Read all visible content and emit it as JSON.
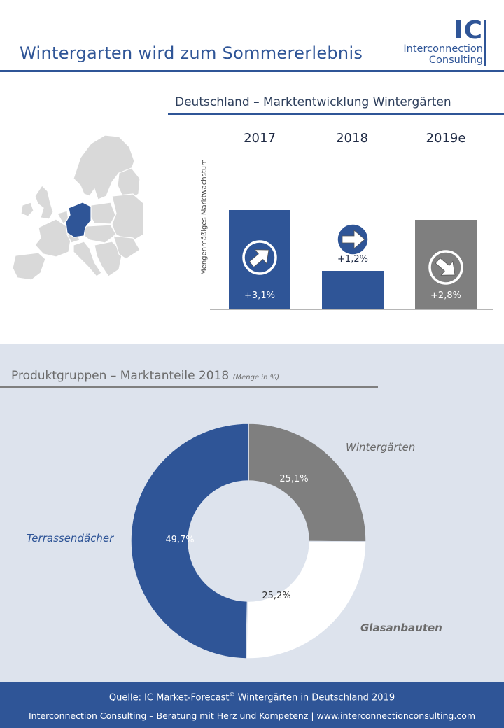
{
  "header": {
    "title": "Wintergarten wird zum Sommererlebnis",
    "logo_letters": "IC",
    "logo_line1": "Interconnection",
    "logo_line2": "Consulting"
  },
  "colors": {
    "brand_blue": "#2f5597",
    "gray": "#7f7f7f",
    "white": "#ffffff",
    "bg_light": "#dde3ed"
  },
  "chart_data": [
    {
      "type": "bar",
      "title": "Deutschland – Marktentwicklung Wintergärten",
      "categories": [
        "2017",
        "2018",
        "2019e"
      ],
      "values": [
        3.1,
        1.2,
        2.8
      ],
      "labels": [
        "+3,1%",
        "+1,2%",
        "+2,8%"
      ],
      "bar_colors": [
        "#2f5597",
        "#2f5597",
        "#7f7f7f"
      ],
      "icons": [
        "arrow-up-right-icon",
        "arrow-right-icon",
        "arrow-right-down-icon"
      ],
      "ylabel": "Mengenmäßiges Marktwachstum",
      "ylim": [
        0,
        3.5
      ],
      "grid": false
    },
    {
      "type": "pie",
      "title": "Produktgruppen – Marktanteile 2018",
      "title_note": "(Menge in %)",
      "donut": true,
      "slices": [
        {
          "name": "Wintergärten",
          "value": 25.1,
          "label": "25,1%",
          "color": "#7f7f7f"
        },
        {
          "name": "Glasanbauten",
          "value": 25.2,
          "label": "25,2%",
          "color": "#ffffff"
        },
        {
          "name": "Terrassendächer",
          "value": 49.7,
          "label": "49,7%",
          "color": "#2f5597"
        }
      ]
    }
  ],
  "footer": {
    "source_prefix": "Quelle: IC Market-Forecast",
    "source_sup": "©",
    "source_suffix": " Wintergärten in Deutschland 2019",
    "line2": "Interconnection Consulting – Beratung mit Herz und Kompetenz  |  www.interconnectionconsulting.com"
  }
}
